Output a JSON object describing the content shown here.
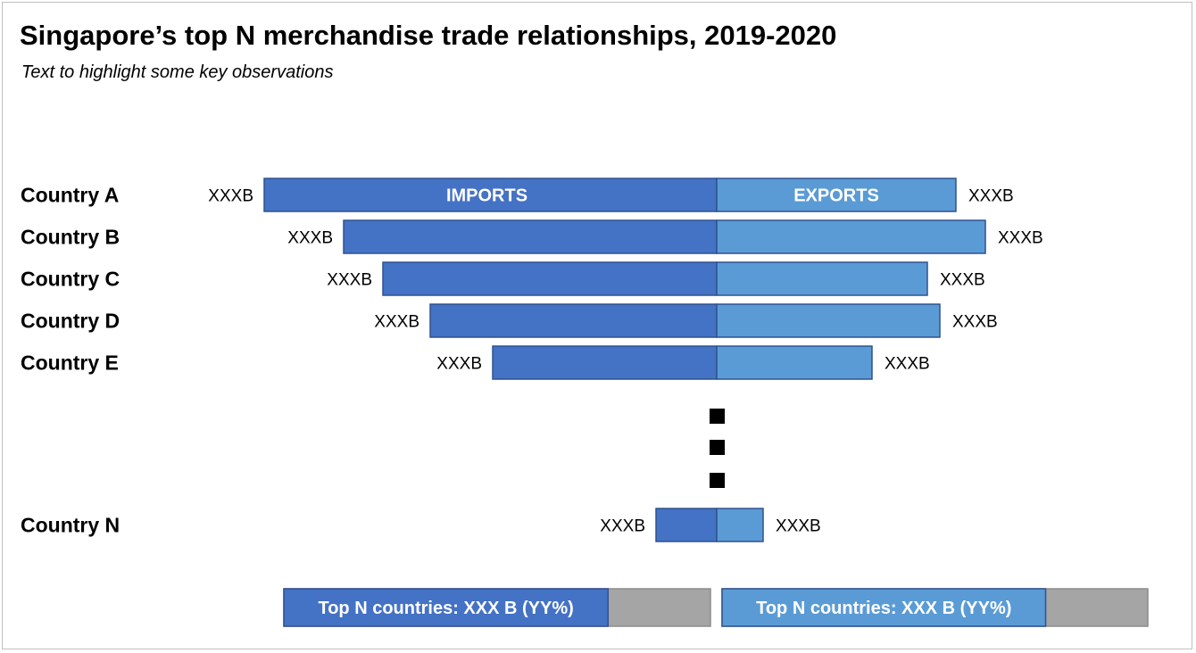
{
  "title": "Singapore’s top N merchandise trade relationships, 2019-2020",
  "subtitle": "Text to highlight some key observations",
  "colors": {
    "imports": "#4472c4",
    "exports": "#5b9bd5",
    "remainder": "#a5a5a5",
    "bar_border": "#2f528f"
  },
  "chart_data": {
    "type": "bar",
    "orientation": "horizontal-butterfly",
    "categories": [
      "Country A",
      "Country B",
      "Country C",
      "Country D",
      "Country E",
      "Country N"
    ],
    "series": [
      {
        "name": "IMPORTS",
        "values": [
          507,
          418,
          374,
          321,
          251,
          68
        ],
        "labels": [
          "XXXB",
          "XXXB",
          "XXXB",
          "XXXB",
          "XXXB",
          "XXXB"
        ]
      },
      {
        "name": "EXPORTS",
        "values": [
          268,
          301,
          236,
          250,
          174,
          52
        ],
        "labels": [
          "XXXB",
          "XXXB",
          "XXXB",
          "XXXB",
          "XXXB",
          "XXXB"
        ]
      }
    ],
    "gap_marker": "ellipsis",
    "totals": [
      {
        "series": "IMPORTS",
        "text": "Top N countries: XXX B (YY%)",
        "share": 0.76
      },
      {
        "series": "EXPORTS",
        "text": "Top N countries: XXX B (YY%)",
        "share": 0.76
      }
    ],
    "grid": false,
    "legend": "inside-first-bar"
  }
}
